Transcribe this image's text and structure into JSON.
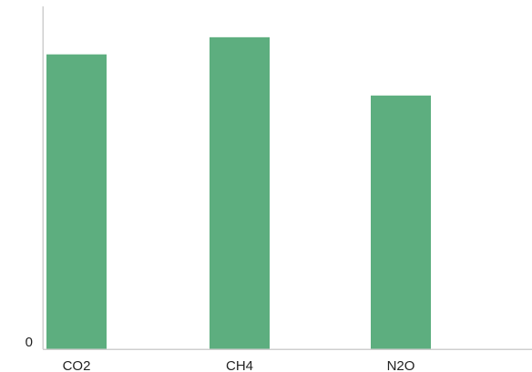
{
  "chart_data": {
    "type": "bar",
    "categories": [
      "CO2",
      "CH4",
      "N2O"
    ],
    "values": [
      0.86,
      0.91,
      0.74
    ],
    "ylim": [
      0,
      1
    ],
    "y_ticks": [
      "0"
    ],
    "grid": false,
    "legend": "none",
    "bar_color": "#5DAE7F",
    "axis_color": "#CFCFCF"
  }
}
